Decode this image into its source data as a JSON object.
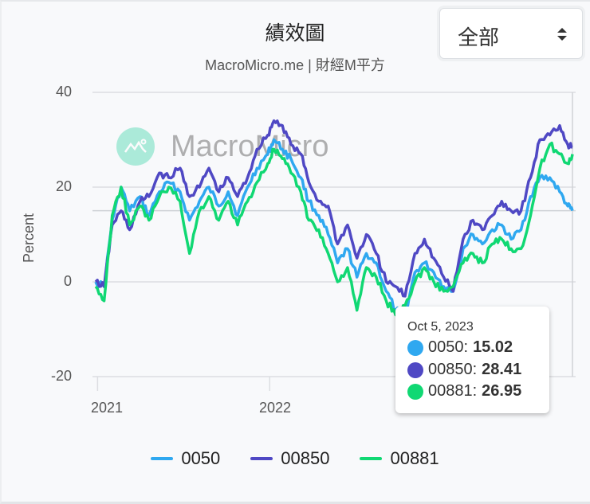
{
  "header": {
    "title": "績效圖",
    "subtitle": "MacroMicro.me | 財經M平方",
    "range_select": {
      "value": "全部",
      "icon": "sort-updown-icon"
    }
  },
  "watermark": {
    "text": "MacroMicro",
    "icon": "macromicro-logo-icon"
  },
  "axis": {
    "y_label": "Percent",
    "y_ticks": [
      "40",
      "20",
      "0",
      "-20"
    ],
    "x_ticks": [
      "2021",
      "2022"
    ]
  },
  "tooltip": {
    "date": "Oct 5, 2023",
    "rows": [
      {
        "name": "0050",
        "label": "0050:",
        "value": "15.02",
        "color": "#2fa8f0"
      },
      {
        "name": "00850",
        "label": "00850:",
        "value": "28.41",
        "color": "#4f48c4"
      },
      {
        "name": "00881",
        "label": "00881:",
        "value": "26.95",
        "color": "#10d873"
      }
    ]
  },
  "legend": [
    {
      "label": "0050",
      "color": "#2fa8f0"
    },
    {
      "label": "00850",
      "color": "#4f48c4"
    },
    {
      "label": "00881",
      "color": "#10d873"
    }
  ],
  "chart_data": {
    "type": "line",
    "title": "績效圖",
    "subtitle": "MacroMicro.me | 財經M平方",
    "xlabel": "",
    "ylabel": "Percent",
    "ylim": [
      -20,
      40
    ],
    "y_ticks": [
      40,
      20,
      0,
      -20
    ],
    "x_ticks": [
      "2021",
      "2022"
    ],
    "x_range": [
      "2020-12-28",
      "2023-10-05"
    ],
    "grid": true,
    "legend_position": "bottom",
    "x": [
      "2020-12-28",
      "2021-01-15",
      "2021-02-01",
      "2021-02-20",
      "2021-03-10",
      "2021-04-01",
      "2021-04-20",
      "2021-05-12",
      "2021-06-01",
      "2021-06-25",
      "2021-07-15",
      "2021-08-05",
      "2021-08-25",
      "2021-09-15",
      "2021-10-05",
      "2021-10-25",
      "2021-11-15",
      "2021-12-05",
      "2021-12-28",
      "2022-01-10",
      "2022-01-28",
      "2022-02-15",
      "2022-03-08",
      "2022-03-25",
      "2022-04-15",
      "2022-05-05",
      "2022-05-25",
      "2022-06-15",
      "2022-07-05",
      "2022-07-25",
      "2022-08-15",
      "2022-09-05",
      "2022-09-25",
      "2022-10-15",
      "2022-11-05",
      "2022-11-25",
      "2022-12-15",
      "2023-01-05",
      "2023-01-25",
      "2023-02-15",
      "2023-03-08",
      "2023-03-28",
      "2023-04-18",
      "2023-05-08",
      "2023-05-28",
      "2023-06-18",
      "2023-07-08",
      "2023-07-28",
      "2023-08-18",
      "2023-09-08",
      "2023-09-25",
      "2023-10-05"
    ],
    "series": [
      {
        "name": "0050",
        "color": "#2fa8f0",
        "values": [
          0,
          -1,
          13,
          20,
          15,
          18,
          14,
          19,
          21,
          19,
          13,
          17,
          20,
          16,
          19,
          14,
          20,
          24,
          27,
          30,
          28,
          26,
          22,
          17,
          14,
          10,
          4,
          7,
          1,
          6,
          4,
          -2,
          -6,
          -7,
          2,
          4,
          2,
          -1,
          -2,
          7,
          10,
          8,
          11,
          12,
          9,
          11,
          18,
          22,
          22,
          19,
          16,
          15.02
        ]
      },
      {
        "name": "00850",
        "color": "#4f48c4",
        "values": [
          0,
          -1,
          12,
          15,
          11,
          17,
          18,
          23,
          22,
          24,
          18,
          20,
          24,
          19,
          22,
          18,
          22,
          28,
          31,
          34,
          33,
          29,
          27,
          21,
          17,
          16,
          8,
          12,
          5,
          10,
          6,
          0,
          -1,
          -3,
          6,
          9,
          5,
          1,
          -2,
          9,
          13,
          11,
          14,
          17,
          15,
          15,
          22,
          30,
          31,
          33,
          29,
          28.41
        ]
      },
      {
        "name": "00881",
        "color": "#10d873",
        "values": [
          -1,
          -4,
          14,
          20,
          12,
          16,
          13,
          18,
          20,
          17,
          6,
          15,
          18,
          13,
          17,
          12,
          17,
          21,
          25,
          28,
          26,
          23,
          19,
          13,
          11,
          6,
          0,
          3,
          -6,
          3,
          1,
          -4,
          -7,
          -5,
          0,
          3,
          0,
          -2,
          -1,
          4,
          6,
          4,
          8,
          9,
          7,
          7,
          14,
          24,
          29,
          27,
          25,
          26.95
        ]
      }
    ]
  }
}
